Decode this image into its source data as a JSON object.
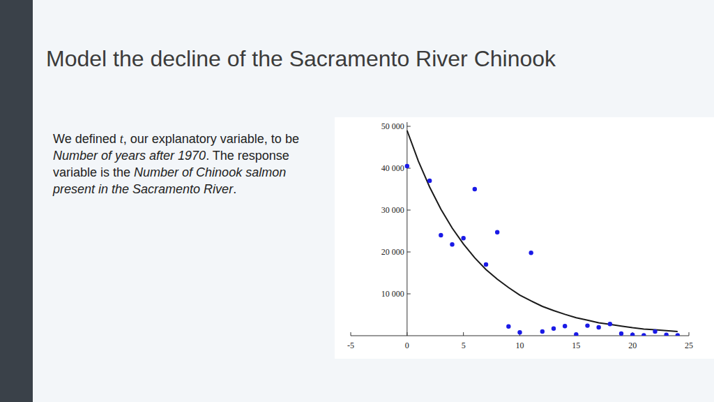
{
  "slide": {
    "title": "Model the decline of the Sacramento River Chinook",
    "description": [
      "We defined ",
      "t",
      ", our explanatory variable, to be ",
      "Number of years after 1970",
      ". The response variable is the ",
      "Number of Chinook salmon present in the Sacramento River",
      "."
    ]
  },
  "chart_data": {
    "type": "scatter",
    "xlim": [
      -5,
      25
    ],
    "ylim": [
      0,
      51000
    ],
    "xticks": [
      -5,
      0,
      5,
      10,
      15,
      20,
      25
    ],
    "yticks": [
      {
        "value": 10000,
        "label": "10 000"
      },
      {
        "value": 20000,
        "label": "20 000"
      },
      {
        "value": 30000,
        "label": "30 000"
      },
      {
        "value": 40000,
        "label": "40 000"
      },
      {
        "value": 50000,
        "label": "50 000"
      }
    ],
    "grid": false,
    "series": [
      {
        "type": "scatter",
        "marker": "circle",
        "color": "#1a1ae6",
        "x": [
          0,
          2,
          3,
          4,
          5,
          6,
          7,
          8,
          9,
          10,
          11,
          12,
          13,
          14,
          15,
          16,
          17,
          18,
          19,
          20,
          21,
          22,
          23,
          24
        ],
        "values": [
          40500,
          37000,
          24000,
          21800,
          23300,
          35000,
          17000,
          24700,
          2200,
          800,
          19800,
          1000,
          1700,
          2300,
          300,
          2400,
          2000,
          2800,
          500,
          200,
          100,
          1000,
          200,
          100
        ]
      },
      {
        "type": "line",
        "line_style": "solid",
        "color": "#1a1a1a",
        "x": [
          0,
          1,
          2,
          3,
          4,
          5,
          6,
          7,
          8,
          9,
          10,
          11,
          12,
          13,
          14,
          15,
          16,
          17,
          18,
          19,
          20,
          21,
          22,
          23,
          24
        ],
        "values": [
          49000,
          41700,
          35500,
          30200,
          25700,
          21900,
          18600,
          15800,
          13500,
          11500,
          9700,
          8300,
          7000,
          6000,
          5100,
          4300,
          3700,
          3100,
          2700,
          2300,
          1900,
          1600,
          1400,
          1200,
          1000
        ]
      }
    ]
  }
}
